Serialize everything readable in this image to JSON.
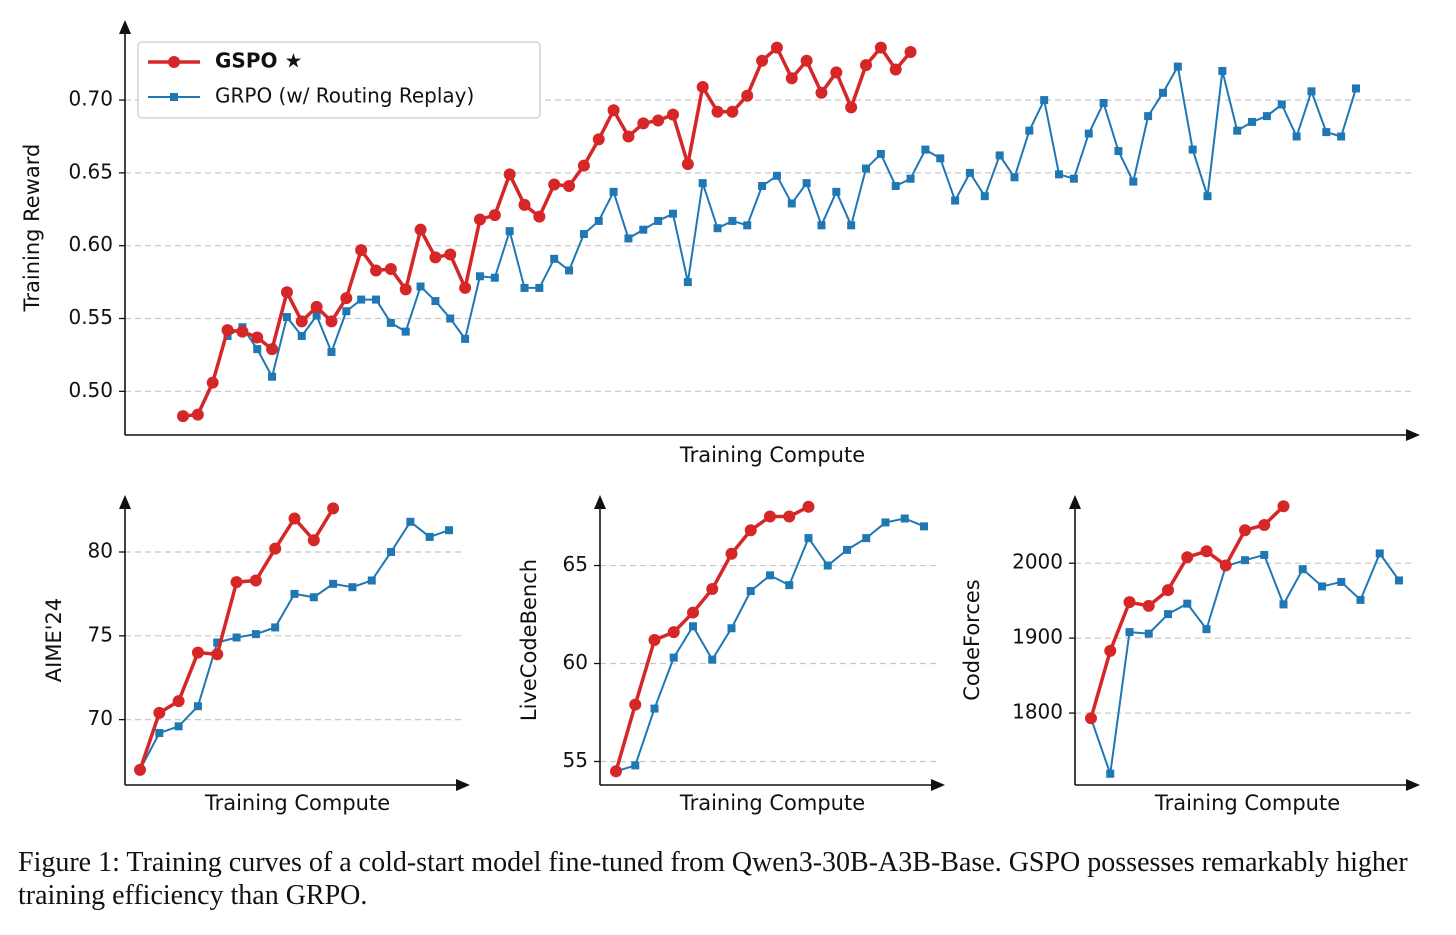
{
  "chart_data": [
    {
      "type": "line",
      "xlabel": "Training Compute",
      "ylabel": "Training Reward",
      "legend": "upper left",
      "grid": true,
      "ylim": [
        0.47,
        0.755
      ],
      "yticks": [
        {
          "value": 0.5,
          "label": "0.50"
        },
        0.55,
        {
          "value": 0.6,
          "label": "0.60"
        },
        0.65,
        {
          "value": 0.7,
          "label": "0.70"
        }
      ],
      "series": [
        {
          "name": "GSPO ★",
          "color": "#d62728",
          "values": [
            0.483,
            0.484,
            0.506,
            0.542,
            0.541,
            0.537,
            0.529,
            0.568,
            0.548,
            0.558,
            0.548,
            0.564,
            0.597,
            0.583,
            0.584,
            0.57,
            0.611,
            0.592,
            0.594,
            0.571,
            0.618,
            0.621,
            0.649,
            0.628,
            0.62,
            0.642,
            0.641,
            0.655,
            0.673,
            0.693,
            0.675,
            0.684,
            0.686,
            0.69,
            0.656,
            0.709,
            0.692,
            0.692,
            0.703,
            0.727,
            0.736,
            0.715,
            0.727,
            0.705,
            0.719,
            0.695,
            0.724,
            0.736,
            0.721,
            0.733,
            null,
            null,
            null,
            null,
            null,
            null,
            null,
            null,
            null,
            null,
            null,
            null,
            null,
            null,
            null,
            null,
            null,
            null,
            null,
            null,
            null,
            null,
            null,
            null,
            null,
            null,
            null,
            null,
            null,
            null
          ]
        },
        {
          "name": "GRPO (w/ Routing Replay)",
          "color": "#1f77b4",
          "values": [
            null,
            null,
            null,
            0.538,
            0.544,
            0.529,
            0.51,
            0.551,
            0.538,
            0.552,
            0.527,
            0.555,
            0.563,
            0.563,
            0.547,
            0.541,
            0.572,
            0.562,
            0.55,
            0.536,
            0.579,
            0.578,
            0.61,
            0.571,
            0.571,
            0.591,
            0.583,
            0.608,
            0.617,
            0.637,
            0.605,
            0.611,
            0.617,
            0.622,
            0.575,
            0.643,
            0.612,
            0.617,
            0.614,
            0.641,
            0.648,
            0.629,
            0.643,
            0.614,
            0.637,
            0.614,
            0.653,
            0.663,
            0.641,
            0.646,
            0.666,
            0.66,
            0.631,
            0.65,
            0.634,
            0.662,
            0.647,
            0.679,
            0.7,
            0.649,
            0.646,
            0.677,
            0.698,
            0.665,
            0.644,
            0.689,
            0.705,
            0.723,
            0.666,
            0.634,
            0.72,
            0.679,
            0.685,
            0.689,
            0.697,
            0.675,
            0.706,
            0.678,
            0.675,
            0.708
          ]
        }
      ]
    },
    {
      "type": "line",
      "xlabel": "Training Compute",
      "ylabel": "AIME'24",
      "grid": true,
      "ylim": [
        66.1,
        83.4
      ],
      "yticks": [
        70,
        75,
        80
      ],
      "series": [
        {
          "name": "GSPO ★",
          "color": "#d62728",
          "values": [
            67.0,
            70.4,
            71.1,
            74.0,
            73.9,
            78.2,
            78.3,
            80.2,
            82.0,
            80.7,
            82.6,
            null,
            null,
            null,
            null,
            null,
            null
          ]
        },
        {
          "name": "GRPO (w/ Routing Replay)",
          "color": "#1f77b4",
          "values": [
            67.0,
            69.2,
            69.6,
            70.8,
            74.6,
            74.9,
            75.1,
            75.5,
            77.5,
            77.3,
            78.1,
            77.9,
            78.3,
            80.0,
            81.8,
            80.9,
            81.3
          ]
        }
      ]
    },
    {
      "type": "line",
      "xlabel": "Training Compute",
      "ylabel": "LiveCodeBench",
      "grid": true,
      "ylim": [
        53.8,
        68.6
      ],
      "yticks": [
        55,
        60,
        65
      ],
      "series": [
        {
          "name": "GSPO ★",
          "color": "#d62728",
          "values": [
            54.5,
            57.9,
            61.2,
            61.6,
            62.6,
            63.8,
            65.6,
            66.8,
            67.5,
            67.5,
            68.0,
            null,
            null,
            null,
            null,
            null,
            null
          ]
        },
        {
          "name": "GRPO (w/ Routing Replay)",
          "color": "#1f77b4",
          "values": [
            54.5,
            54.8,
            57.7,
            60.3,
            61.9,
            60.2,
            61.8,
            63.7,
            64.5,
            64.0,
            66.4,
            65.0,
            65.8,
            66.4,
            67.2,
            67.4,
            67.0
          ]
        }
      ]
    },
    {
      "type": "line",
      "xlabel": "Training Compute",
      "ylabel": "CodeForces",
      "grid": true,
      "ylim": [
        1704,
        2091
      ],
      "yticks": [
        1800,
        1900,
        2000
      ],
      "series": [
        {
          "name": "GSPO ★",
          "color": "#d62728",
          "values": [
            1793,
            1883,
            1948,
            1943,
            1964,
            2008,
            2016,
            1997,
            2044,
            2051,
            2076,
            null,
            null,
            null,
            null,
            null,
            null
          ]
        },
        {
          "name": "GRPO (w/ Routing Replay)",
          "color": "#1f77b4",
          "values": [
            1793,
            1719,
            1908,
            1906,
            1932,
            1946,
            1912,
            1996,
            2004,
            2011,
            1945,
            1992,
            1969,
            1975,
            1951,
            2013,
            1977
          ]
        }
      ]
    }
  ],
  "caption": "Figure 1: Training curves of a cold-start model fine-tuned from Qwen3-30B-A3B-Base. GSPO possesses remarkably higher training efficiency than GRPO."
}
